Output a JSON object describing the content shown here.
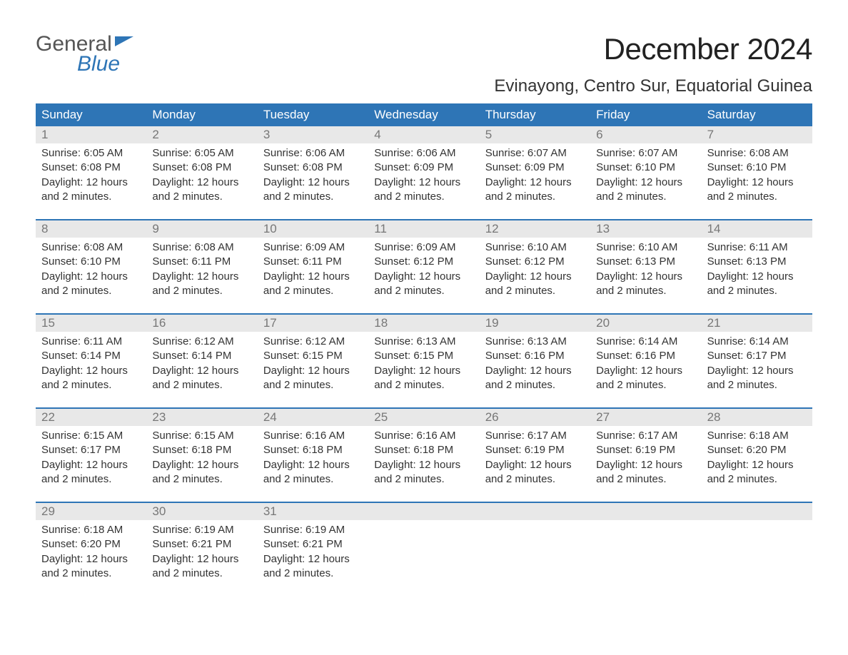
{
  "logo": {
    "word1": "General",
    "word2": "Blue"
  },
  "title": "December 2024",
  "location": "Evinayong, Centro Sur, Equatorial Guinea",
  "colors": {
    "header_bg": "#2e75b6",
    "header_text": "#ffffff",
    "daynum_bg": "#e8e8e8",
    "daynum_text": "#777777",
    "body_text": "#333333",
    "rule": "#2e75b6",
    "logo_gray": "#555555",
    "logo_blue": "#2e75b6"
  },
  "day_labels": [
    "Sunday",
    "Monday",
    "Tuesday",
    "Wednesday",
    "Thursday",
    "Friday",
    "Saturday"
  ],
  "weeks": [
    [
      {
        "n": "1",
        "sunrise": "Sunrise: 6:05 AM",
        "sunset": "Sunset: 6:08 PM",
        "d1": "Daylight: 12 hours",
        "d2": "and 2 minutes."
      },
      {
        "n": "2",
        "sunrise": "Sunrise: 6:05 AM",
        "sunset": "Sunset: 6:08 PM",
        "d1": "Daylight: 12 hours",
        "d2": "and 2 minutes."
      },
      {
        "n": "3",
        "sunrise": "Sunrise: 6:06 AM",
        "sunset": "Sunset: 6:08 PM",
        "d1": "Daylight: 12 hours",
        "d2": "and 2 minutes."
      },
      {
        "n": "4",
        "sunrise": "Sunrise: 6:06 AM",
        "sunset": "Sunset: 6:09 PM",
        "d1": "Daylight: 12 hours",
        "d2": "and 2 minutes."
      },
      {
        "n": "5",
        "sunrise": "Sunrise: 6:07 AM",
        "sunset": "Sunset: 6:09 PM",
        "d1": "Daylight: 12 hours",
        "d2": "and 2 minutes."
      },
      {
        "n": "6",
        "sunrise": "Sunrise: 6:07 AM",
        "sunset": "Sunset: 6:10 PM",
        "d1": "Daylight: 12 hours",
        "d2": "and 2 minutes."
      },
      {
        "n": "7",
        "sunrise": "Sunrise: 6:08 AM",
        "sunset": "Sunset: 6:10 PM",
        "d1": "Daylight: 12 hours",
        "d2": "and 2 minutes."
      }
    ],
    [
      {
        "n": "8",
        "sunrise": "Sunrise: 6:08 AM",
        "sunset": "Sunset: 6:10 PM",
        "d1": "Daylight: 12 hours",
        "d2": "and 2 minutes."
      },
      {
        "n": "9",
        "sunrise": "Sunrise: 6:08 AM",
        "sunset": "Sunset: 6:11 PM",
        "d1": "Daylight: 12 hours",
        "d2": "and 2 minutes."
      },
      {
        "n": "10",
        "sunrise": "Sunrise: 6:09 AM",
        "sunset": "Sunset: 6:11 PM",
        "d1": "Daylight: 12 hours",
        "d2": "and 2 minutes."
      },
      {
        "n": "11",
        "sunrise": "Sunrise: 6:09 AM",
        "sunset": "Sunset: 6:12 PM",
        "d1": "Daylight: 12 hours",
        "d2": "and 2 minutes."
      },
      {
        "n": "12",
        "sunrise": "Sunrise: 6:10 AM",
        "sunset": "Sunset: 6:12 PM",
        "d1": "Daylight: 12 hours",
        "d2": "and 2 minutes."
      },
      {
        "n": "13",
        "sunrise": "Sunrise: 6:10 AM",
        "sunset": "Sunset: 6:13 PM",
        "d1": "Daylight: 12 hours",
        "d2": "and 2 minutes."
      },
      {
        "n": "14",
        "sunrise": "Sunrise: 6:11 AM",
        "sunset": "Sunset: 6:13 PM",
        "d1": "Daylight: 12 hours",
        "d2": "and 2 minutes."
      }
    ],
    [
      {
        "n": "15",
        "sunrise": "Sunrise: 6:11 AM",
        "sunset": "Sunset: 6:14 PM",
        "d1": "Daylight: 12 hours",
        "d2": "and 2 minutes."
      },
      {
        "n": "16",
        "sunrise": "Sunrise: 6:12 AM",
        "sunset": "Sunset: 6:14 PM",
        "d1": "Daylight: 12 hours",
        "d2": "and 2 minutes."
      },
      {
        "n": "17",
        "sunrise": "Sunrise: 6:12 AM",
        "sunset": "Sunset: 6:15 PM",
        "d1": "Daylight: 12 hours",
        "d2": "and 2 minutes."
      },
      {
        "n": "18",
        "sunrise": "Sunrise: 6:13 AM",
        "sunset": "Sunset: 6:15 PM",
        "d1": "Daylight: 12 hours",
        "d2": "and 2 minutes."
      },
      {
        "n": "19",
        "sunrise": "Sunrise: 6:13 AM",
        "sunset": "Sunset: 6:16 PM",
        "d1": "Daylight: 12 hours",
        "d2": "and 2 minutes."
      },
      {
        "n": "20",
        "sunrise": "Sunrise: 6:14 AM",
        "sunset": "Sunset: 6:16 PM",
        "d1": "Daylight: 12 hours",
        "d2": "and 2 minutes."
      },
      {
        "n": "21",
        "sunrise": "Sunrise: 6:14 AM",
        "sunset": "Sunset: 6:17 PM",
        "d1": "Daylight: 12 hours",
        "d2": "and 2 minutes."
      }
    ],
    [
      {
        "n": "22",
        "sunrise": "Sunrise: 6:15 AM",
        "sunset": "Sunset: 6:17 PM",
        "d1": "Daylight: 12 hours",
        "d2": "and 2 minutes."
      },
      {
        "n": "23",
        "sunrise": "Sunrise: 6:15 AM",
        "sunset": "Sunset: 6:18 PM",
        "d1": "Daylight: 12 hours",
        "d2": "and 2 minutes."
      },
      {
        "n": "24",
        "sunrise": "Sunrise: 6:16 AM",
        "sunset": "Sunset: 6:18 PM",
        "d1": "Daylight: 12 hours",
        "d2": "and 2 minutes."
      },
      {
        "n": "25",
        "sunrise": "Sunrise: 6:16 AM",
        "sunset": "Sunset: 6:18 PM",
        "d1": "Daylight: 12 hours",
        "d2": "and 2 minutes."
      },
      {
        "n": "26",
        "sunrise": "Sunrise: 6:17 AM",
        "sunset": "Sunset: 6:19 PM",
        "d1": "Daylight: 12 hours",
        "d2": "and 2 minutes."
      },
      {
        "n": "27",
        "sunrise": "Sunrise: 6:17 AM",
        "sunset": "Sunset: 6:19 PM",
        "d1": "Daylight: 12 hours",
        "d2": "and 2 minutes."
      },
      {
        "n": "28",
        "sunrise": "Sunrise: 6:18 AM",
        "sunset": "Sunset: 6:20 PM",
        "d1": "Daylight: 12 hours",
        "d2": "and 2 minutes."
      }
    ],
    [
      {
        "n": "29",
        "sunrise": "Sunrise: 6:18 AM",
        "sunset": "Sunset: 6:20 PM",
        "d1": "Daylight: 12 hours",
        "d2": "and 2 minutes."
      },
      {
        "n": "30",
        "sunrise": "Sunrise: 6:19 AM",
        "sunset": "Sunset: 6:21 PM",
        "d1": "Daylight: 12 hours",
        "d2": "and 2 minutes."
      },
      {
        "n": "31",
        "sunrise": "Sunrise: 6:19 AM",
        "sunset": "Sunset: 6:21 PM",
        "d1": "Daylight: 12 hours",
        "d2": "and 2 minutes."
      },
      null,
      null,
      null,
      null
    ]
  ]
}
